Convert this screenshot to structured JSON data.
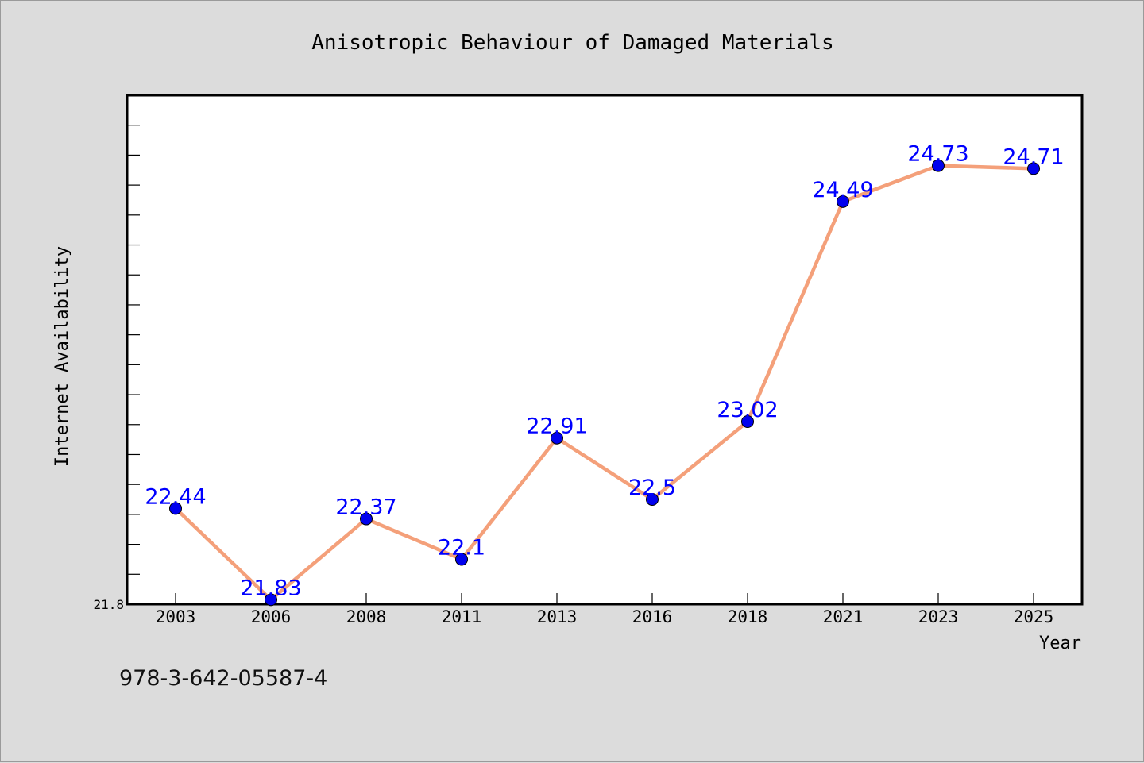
{
  "isbn": "978-3-642-05587-4",
  "colors": {
    "background": "#dcdcdc",
    "plot_area": "#ffffff",
    "line": "#f4a07a",
    "marker": "#0000ee",
    "data_label": "#0000ff"
  },
  "chart_data": {
    "type": "line",
    "title": "Anisotropic Behaviour of Damaged Materials",
    "xlabel": "Year",
    "ylabel": "Internet Availability",
    "categories": [
      "2003",
      "2006",
      "2008",
      "2011",
      "2013",
      "2016",
      "2018",
      "2021",
      "2023",
      "2025"
    ],
    "series": [
      {
        "values": [
          22.44,
          21.83,
          22.37,
          22.1,
          22.91,
          22.5,
          23.02,
          24.49,
          24.73,
          24.71
        ],
        "labels": [
          "22.44",
          "21.83",
          "22.37",
          "22.1",
          "22.91",
          "22.5",
          "23.02",
          "24.49",
          "24.73",
          "24.71"
        ]
      }
    ],
    "ylim": [
      21.8,
      25.2
    ],
    "y_tick_labels": [
      "21.8"
    ],
    "grid": false,
    "legend": "none"
  }
}
